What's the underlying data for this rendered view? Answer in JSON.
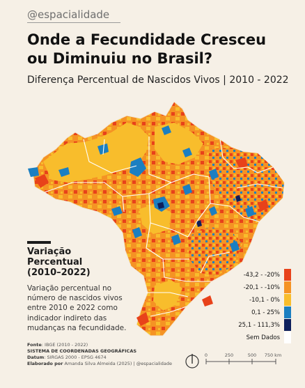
{
  "header": {
    "handle": "@espacialidade",
    "title": "Onde a Fecundidade Cresceu ou Diminuiu no Brasil?",
    "subtitle": "Diferença Percentual de Nascidos Vivos | 2010 - 2022"
  },
  "legend": {
    "title": "Variação Percentual (2010–2022)",
    "description": "Variação percentual no número de nascidos vivos entre 2010 e 2022 como indicador indireto das mudanças na fecundidade.",
    "classes": [
      {
        "label": "-43,2 - -20%",
        "color": "#e8421a"
      },
      {
        "label": "-20,1 - -10%",
        "color": "#f59324"
      },
      {
        "label": "-10,1 - 0%",
        "color": "#f8bd2c"
      },
      {
        "label": "0,1 - 25%",
        "color": "#1b7fc1"
      },
      {
        "label": "25,1 - 111,3%",
        "color": "#0d1f5c"
      },
      {
        "label": "Sem Dados",
        "color": "#ffffff"
      }
    ]
  },
  "credits": {
    "source_label": "Fonte",
    "source": ": IBGE (2010 - 2022)",
    "crs_label": "SISTEMA DE COORDENADAS GEOGRÁFICAS",
    "datum_label": "Datum",
    "datum": ": SIRGAS 2000 - EPSG 4674",
    "author_label": "Elaborado por",
    "author": " Amanda Silva Almeida (2025) | @espacialidade"
  },
  "scale": {
    "ticks": [
      "0",
      "250",
      "500",
      "750 km"
    ]
  },
  "map": {
    "colors": {
      "decline_strong": "#e8421a",
      "decline_moderate": "#f59324",
      "decline_mild": "#f8bd2c",
      "growth_mild": "#1b7fc1",
      "growth_strong": "#0d1f5c",
      "state_borders": "#ffffff"
    }
  }
}
